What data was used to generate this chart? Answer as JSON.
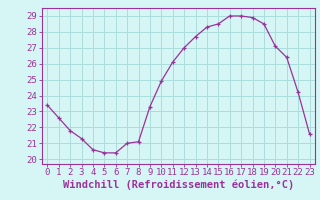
{
  "hours": [
    0,
    1,
    2,
    3,
    4,
    5,
    6,
    7,
    8,
    9,
    10,
    11,
    12,
    13,
    14,
    15,
    16,
    17,
    18,
    19,
    20,
    21,
    22,
    23
  ],
  "values": [
    23.4,
    22.6,
    21.8,
    21.3,
    20.6,
    20.4,
    20.4,
    21.0,
    21.1,
    23.3,
    24.9,
    26.1,
    27.0,
    27.7,
    28.3,
    28.5,
    29.0,
    29.0,
    28.9,
    28.5,
    27.1,
    26.4,
    24.2,
    21.6
  ],
  "line_color": "#993399",
  "marker": "+",
  "bg_color": "#d6f5f5",
  "grid_color": "#aadddd",
  "xlabel": "Windchill (Refroidissement éolien,°C)",
  "yticks": [
    20,
    21,
    22,
    23,
    24,
    25,
    26,
    27,
    28,
    29
  ],
  "xticks": [
    0,
    1,
    2,
    3,
    4,
    5,
    6,
    7,
    8,
    9,
    10,
    11,
    12,
    13,
    14,
    15,
    16,
    17,
    18,
    19,
    20,
    21,
    22,
    23
  ],
  "ylim": [
    19.7,
    29.5
  ],
  "xlim": [
    -0.5,
    23.5
  ],
  "tick_fontsize": 6.5,
  "xlabel_fontsize": 7.5,
  "axis_color": "#993399",
  "tick_color": "#993399"
}
